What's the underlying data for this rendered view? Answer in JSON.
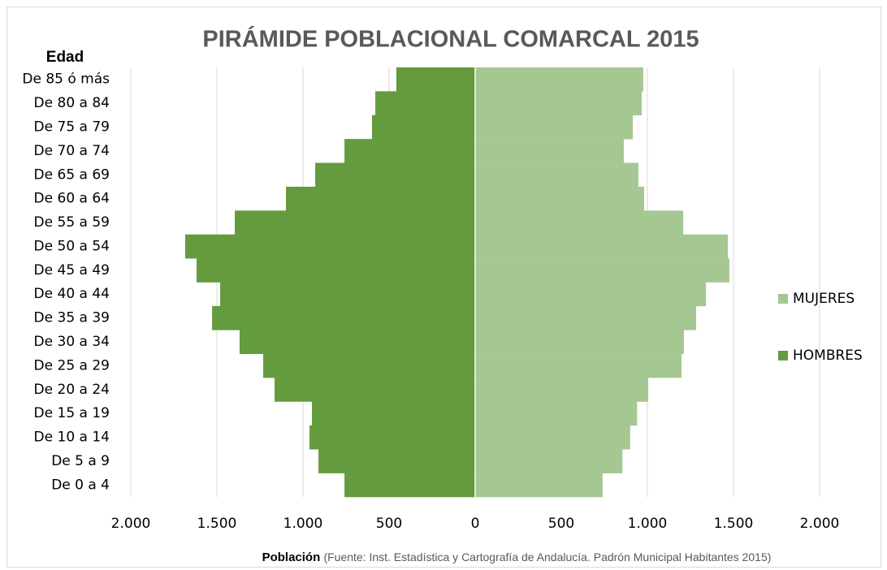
{
  "chart_data": {
    "type": "bar",
    "orientation": "horizontal",
    "title": "PIRÁMIDE POBLACIONAL COMARCAL 2015",
    "ylabel": "Edad",
    "xlabel": "Población",
    "source": "(Fuente: Inst. Estadística y Cartografía de Andalucía. Padrón Municipal Habitantes 2015)",
    "categories": [
      "De 85 ó más",
      "De 80 a 84",
      "De 75 a 79",
      "De 70 a 74",
      "De 65 a 69",
      "De 60 a 64",
      "De 55 a 59",
      "De 50 a 54",
      "De 45 a 49",
      "De 40 a 44",
      "De 35 a 39",
      "De 30 a 34",
      "De 25 a 29",
      "De 20 a 24",
      "De 15 a 19",
      "De 10 a 14",
      "De 5 a 9",
      "De 0 a 4"
    ],
    "series": [
      {
        "name": "MUJERES",
        "color": "#a5c791",
        "values": [
          976,
          967,
          915,
          863,
          948,
          981,
          1208,
          1467,
          1476,
          1340,
          1283,
          1212,
          1198,
          1005,
          940,
          900,
          855,
          740
        ]
      },
      {
        "name": "HOMBRES",
        "color": "#639b3e",
        "values": [
          -458,
          -580,
          -599,
          -759,
          -929,
          -1099,
          -1396,
          -1684,
          -1618,
          -1481,
          -1528,
          -1368,
          -1231,
          -1165,
          -948,
          -962,
          -910,
          -759
        ]
      }
    ],
    "xlim": [
      -2000,
      2000
    ],
    "xticks": [
      {
        "value": -2000,
        "label": "2.000"
      },
      {
        "value": -1500,
        "label": "1.500"
      },
      {
        "value": -1000,
        "label": "1.000"
      },
      {
        "value": -500,
        "label": "500"
      },
      0,
      500,
      {
        "value": 1000,
        "label": "1.000"
      },
      {
        "value": 1500,
        "label": "1.500"
      },
      {
        "value": 2000,
        "label": "2.000"
      }
    ],
    "grid": true,
    "legend": "right"
  }
}
